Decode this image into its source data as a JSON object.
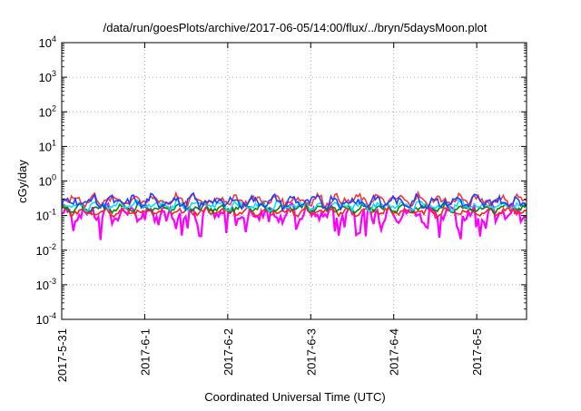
{
  "chart_data": {
    "type": "line",
    "title": "/data/run/goesPlots/archive/2017-06-05/14:00/flux/../bryn/5daysMoon.plot",
    "xlabel": "Coordinated Universal Time (UTC)",
    "ylabel": "cGy/day",
    "y_scale": "log",
    "ylim": [
      0.0001,
      10000
    ],
    "y_ticks": [
      {
        "value": 0.0001,
        "base": "10",
        "exp": "-4"
      },
      {
        "value": 0.001,
        "base": "10",
        "exp": "-3"
      },
      {
        "value": 0.01,
        "base": "10",
        "exp": "-2"
      },
      {
        "value": 0.1,
        "base": "10",
        "exp": "-1"
      },
      {
        "value": 1,
        "base": "10",
        "exp": "0"
      },
      {
        "value": 10,
        "base": "10",
        "exp": "1"
      },
      {
        "value": 100,
        "base": "10",
        "exp": "2"
      },
      {
        "value": 1000,
        "base": "10",
        "exp": "3"
      },
      {
        "value": 10000,
        "base": "10",
        "exp": "4"
      }
    ],
    "x_range_days": [
      0,
      5.6
    ],
    "x_ticks": [
      {
        "day": 0,
        "label": "2017-5-31"
      },
      {
        "day": 1,
        "label": "2017-6-1"
      },
      {
        "day": 2,
        "label": "2017-6-2"
      },
      {
        "day": 3,
        "label": "2017-6-3"
      },
      {
        "day": 4,
        "label": "2017-6-4"
      },
      {
        "day": 5,
        "label": "2017-6-5"
      }
    ],
    "grid": "dotted",
    "legend": "none",
    "series": [
      {
        "color": "#ff00ff",
        "center": 0.115,
        "spread": 0.3,
        "dips": true
      },
      {
        "color": "#ff2020",
        "center": 0.13,
        "spread": 0.14,
        "dips": false
      },
      {
        "color": "#008a00",
        "center": 0.165,
        "spread": 0.14,
        "dips": false
      },
      {
        "color": "#00e5ff",
        "center": 0.2,
        "spread": 0.16,
        "dips": false
      },
      {
        "color": "#ff3333",
        "center": 0.28,
        "spread": 0.2,
        "dips": false
      },
      {
        "color": "#1f3fff",
        "center": 0.25,
        "spread": 0.22,
        "dips": false
      }
    ]
  }
}
